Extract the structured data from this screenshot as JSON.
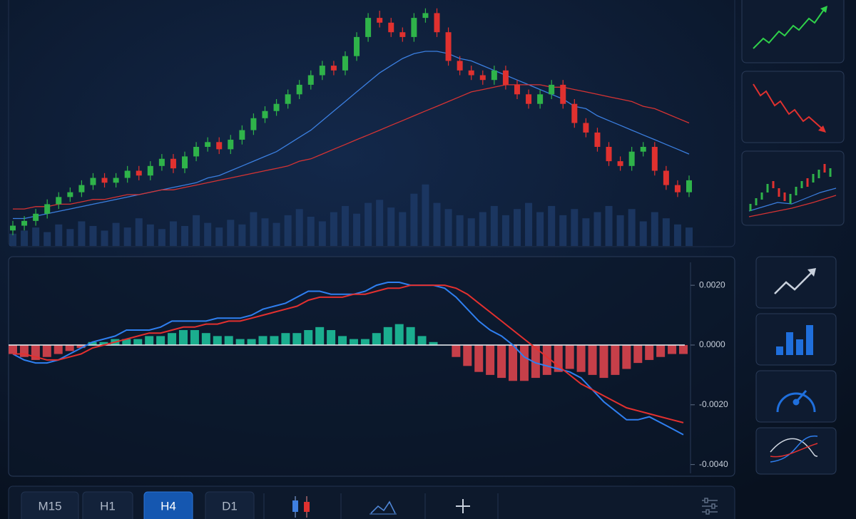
{
  "chart_data": [
    {
      "type": "candlestick",
      "ylim": [
        0,
        100
      ],
      "up_color": "#2fb34a",
      "down_color": "#e0312f",
      "open": [
        5,
        7,
        9,
        12,
        16,
        19,
        21,
        24,
        27,
        25,
        27,
        30,
        28,
        32,
        35,
        31,
        36,
        40,
        42,
        39,
        43,
        47,
        52,
        55,
        58,
        62,
        66,
        70,
        74,
        72,
        78,
        86,
        94,
        92,
        88,
        86,
        94,
        96,
        88,
        76,
        72,
        70,
        68,
        72,
        66,
        62,
        58,
        62,
        66,
        58,
        50,
        46,
        40,
        34,
        32,
        38,
        40,
        30,
        24,
        21
      ],
      "high": [
        9,
        11,
        14,
        18,
        21,
        23,
        26,
        29,
        29,
        29,
        32,
        32,
        34,
        37,
        37,
        38,
        42,
        44,
        44,
        45,
        49,
        54,
        57,
        60,
        64,
        68,
        72,
        76,
        76,
        80,
        88,
        96,
        97,
        94,
        90,
        96,
        98,
        98,
        90,
        78,
        74,
        72,
        74,
        74,
        68,
        64,
        64,
        68,
        68,
        60,
        52,
        48,
        42,
        36,
        40,
        42,
        42,
        32,
        26,
        28
      ],
      "low": [
        3,
        5,
        7,
        10,
        14,
        17,
        19,
        22,
        23,
        23,
        25,
        26,
        26,
        30,
        29,
        29,
        34,
        38,
        37,
        37,
        41,
        45,
        50,
        53,
        56,
        60,
        64,
        68,
        70,
        70,
        76,
        84,
        90,
        86,
        84,
        84,
        92,
        86,
        74,
        70,
        68,
        66,
        66,
        64,
        60,
        56,
        56,
        60,
        56,
        48,
        44,
        38,
        32,
        30,
        30,
        36,
        28,
        22,
        19,
        19
      ],
      "close": [
        7,
        9,
        12,
        16,
        19,
        21,
        24,
        27,
        25,
        27,
        30,
        28,
        32,
        35,
        31,
        36,
        40,
        42,
        39,
        43,
        47,
        52,
        55,
        58,
        62,
        66,
        70,
        74,
        72,
        78,
        86,
        94,
        92,
        88,
        86,
        94,
        96,
        88,
        76,
        72,
        70,
        68,
        72,
        66,
        62,
        58,
        62,
        66,
        58,
        50,
        46,
        40,
        34,
        32,
        38,
        40,
        30,
        24,
        21,
        26
      ],
      "volume_lim": [
        0,
        160
      ],
      "volume_color": "#1d3a66",
      "volume": [
        8,
        10,
        12,
        9,
        14,
        11,
        16,
        13,
        10,
        15,
        12,
        18,
        14,
        11,
        16,
        13,
        20,
        15,
        12,
        17,
        14,
        22,
        18,
        15,
        20,
        24,
        19,
        16,
        22,
        26,
        21,
        28,
        30,
        25,
        22,
        34,
        40,
        28,
        24,
        20,
        18,
        22,
        26,
        20,
        24,
        28,
        22,
        26,
        20,
        24,
        18,
        22,
        26,
        20,
        24,
        16,
        22,
        18,
        14,
        12
      ],
      "series": [
        {
          "color": "#3b7fe0",
          "values": [
            10,
            10,
            11,
            12,
            13,
            14,
            15,
            16,
            17,
            18,
            19,
            20,
            21,
            22,
            23,
            24,
            25,
            27,
            28,
            30,
            32,
            34,
            36,
            38,
            41,
            44,
            47,
            51,
            55,
            59,
            63,
            67,
            71,
            74,
            77,
            79,
            80,
            80,
            79,
            77,
            76,
            74,
            72,
            70,
            68,
            66,
            64,
            62,
            60,
            57,
            56,
            53,
            51,
            49,
            47,
            45,
            43,
            41,
            39,
            37
          ]
        },
        {
          "color": "#d63333",
          "values": [
            14,
            14,
            15,
            15,
            16,
            16,
            17,
            18,
            18,
            19,
            20,
            20,
            21,
            22,
            22,
            23,
            24,
            25,
            26,
            27,
            28,
            29,
            30,
            31,
            32,
            34,
            35,
            37,
            39,
            41,
            43,
            45,
            47,
            49,
            51,
            53,
            55,
            57,
            59,
            61,
            63,
            64,
            65,
            66,
            66,
            66,
            66,
            65,
            65,
            64,
            63,
            62,
            61,
            60,
            59,
            57,
            56,
            54,
            52,
            50
          ]
        }
      ]
    },
    {
      "type": "macd",
      "ylim": [
        -0.0042,
        0.0026
      ],
      "yticks": [
        {
          "value": 0.002,
          "label": "0.0020"
        },
        {
          "value": 0,
          "label": "0.0000"
        },
        {
          "value": -0.002,
          "label": "-0.0020"
        },
        {
          "value": -0.004,
          "label": "-0.0040"
        }
      ],
      "positive_color": "#1fc9a0",
      "negative_color": "#e8474f",
      "histogram": [
        -0.0003,
        -0.0004,
        -0.0005,
        -0.0004,
        -0.0003,
        -0.0002,
        -0.0001,
        0.0001,
        0.0001,
        0.0002,
        0.0002,
        0.0002,
        0.0003,
        0.0003,
        0.0004,
        0.0005,
        0.0005,
        0.0004,
        0.0003,
        0.0003,
        0.0002,
        0.0002,
        0.0003,
        0.0003,
        0.0004,
        0.0004,
        0.0005,
        0.0006,
        0.0005,
        0.0003,
        0.0002,
        0.0002,
        0.0004,
        0.0006,
        0.0007,
        0.0006,
        0.0003,
        0.0001,
        0,
        -0.0004,
        -0.0007,
        -0.0009,
        -0.001,
        -0.0011,
        -0.0012,
        -0.0012,
        -0.0011,
        -0.001,
        -0.0009,
        -0.0008,
        -0.0009,
        -0.001,
        -0.0011,
        -0.001,
        -0.0008,
        -0.0006,
        -0.0005,
        -0.0004,
        -0.0003,
        -0.0003
      ],
      "series": [
        {
          "color": "#2f7ff0",
          "values": [
            -0.0003,
            -0.0005,
            -0.0006,
            -0.0006,
            -0.0005,
            -0.0003,
            -0.0001,
            0.0001,
            0.0002,
            0.0003,
            0.0005,
            0.0005,
            0.0005,
            0.0006,
            0.0008,
            0.0008,
            0.0008,
            0.0008,
            0.0009,
            0.0009,
            0.0009,
            0.001,
            0.0012,
            0.0013,
            0.0014,
            0.0016,
            0.0018,
            0.0018,
            0.0017,
            0.0017,
            0.0017,
            0.0018,
            0.002,
            0.0021,
            0.0021,
            0.002,
            0.002,
            0.002,
            0.0019,
            0.0016,
            0.0012,
            0.0008,
            0.0005,
            0.0003,
            0,
            -0.0004,
            -0.0006,
            -0.0007,
            -0.0008,
            -0.0009,
            -0.0011,
            -0.0015,
            -0.0019,
            -0.0022,
            -0.0025,
            -0.0025,
            -0.0024,
            -0.0026,
            -0.0028,
            -0.003
          ]
        },
        {
          "color": "#e3302f",
          "values": [
            -0.0003,
            -0.0003,
            -0.0004,
            -0.0005,
            -0.0005,
            -0.0004,
            -0.0003,
            -0.0001,
            0,
            0.0001,
            0.0002,
            0.0003,
            0.0004,
            0.0004,
            0.0005,
            0.0006,
            0.0006,
            0.0007,
            0.0007,
            0.0008,
            0.0008,
            0.0009,
            0.001,
            0.0011,
            0.0012,
            0.0013,
            0.0015,
            0.0016,
            0.0016,
            0.0016,
            0.0017,
            0.0017,
            0.0018,
            0.0019,
            0.0019,
            0.002,
            0.002,
            0.002,
            0.002,
            0.0019,
            0.0017,
            0.0014,
            0.0011,
            0.0008,
            0.0005,
            0.0002,
            -0.0001,
            -0.0004,
            -0.0007,
            -0.001,
            -0.0013,
            -0.0015,
            -0.0017,
            -0.0019,
            -0.0021,
            -0.0022,
            -0.0023,
            -0.0024,
            -0.0025,
            -0.0026
          ]
        }
      ]
    }
  ],
  "toolbar": {
    "timeframes": [
      "M15",
      "H1",
      "H4",
      "D1"
    ],
    "active": 2
  }
}
